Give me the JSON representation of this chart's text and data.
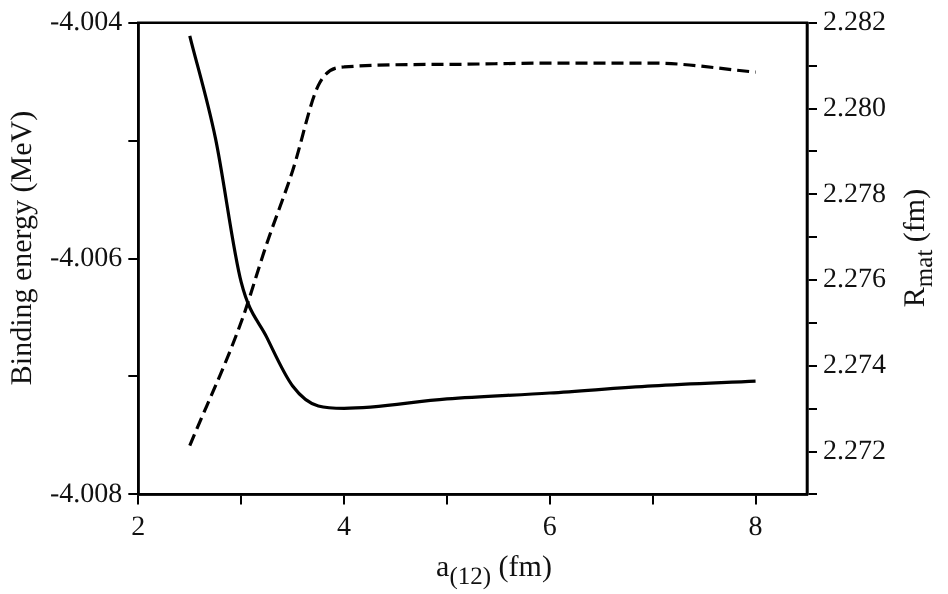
{
  "chart_data": {
    "type": "line",
    "xlabel": "a$_{(12)}$ (fm)",
    "ylabel": "Binding energy  (MeV)",
    "y2label": "R$_{mat}$  (fm)",
    "xlim": [
      2,
      8.5
    ],
    "xticks": [
      2,
      {
        "value": 3,
        "label": null
      },
      4,
      {
        "value": 5,
        "label": null
      },
      6,
      {
        "value": 7,
        "label": null
      },
      8
    ],
    "ylim": [
      -4.008,
      -4.004
    ],
    "yticks": [
      -4.008,
      {
        "value": -4.007,
        "label": null
      },
      -4.006,
      {
        "value": -4.005,
        "label": null
      },
      -4.004
    ],
    "y2lim": [
      2.271,
      2.282
    ],
    "y2ticks": [
      {
        "value": 2.271,
        "label": null
      },
      2.272,
      {
        "value": 2.273,
        "label": null
      },
      2.274,
      {
        "value": 2.275,
        "label": null
      },
      2.276,
      {
        "value": 2.277,
        "label": null
      },
      2.278,
      {
        "value": 2.279,
        "label": null
      },
      {
        "value": 2.28,
        "label": "2.280"
      },
      {
        "value": 2.281,
        "label": null
      },
      2.282
    ],
    "grid": false,
    "legend": false,
    "marker": "none",
    "series": [
      {
        "color": "#000000",
        "line_style": "solid",
        "x": [
          2.5,
          2.75,
          3,
          3.25,
          3.5,
          3.75,
          4,
          5,
          6,
          7,
          8
        ],
        "values": [
          -4.00411,
          -4.00498,
          -4.0062,
          -4.00667,
          -4.00708,
          -4.00725,
          -4.00727,
          -4.00719,
          -4.00714,
          -4.00708,
          -4.00704
        ]
      },
      {
        "color": "#000000",
        "line_style": "dashed",
        "axis": "y2",
        "x": [
          2.5,
          3,
          3.25,
          3.5,
          3.75,
          4,
          5,
          6,
          7,
          8
        ],
        "values": [
          2.27214,
          2.27502,
          2.27686,
          2.27855,
          2.28054,
          2.28097,
          2.28103,
          2.28106,
          2.28106,
          2.28085
        ]
      }
    ]
  }
}
